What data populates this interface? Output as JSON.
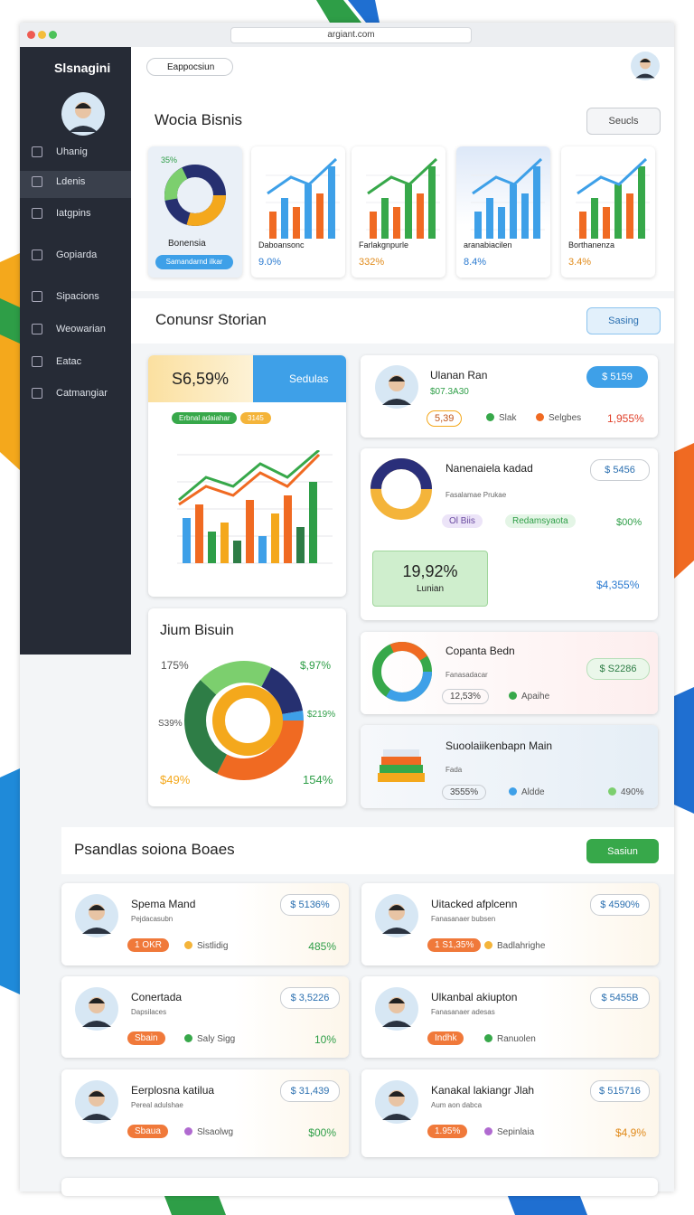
{
  "browser": {
    "url": "argiant.com"
  },
  "sidebar": {
    "brand": "Slsnagini",
    "items": [
      "Uhanig",
      "Ldenis",
      "Iatgpins",
      "Gopiarda",
      "Sipacions",
      "Weowarian",
      "Eatac",
      "Catmangiar"
    ]
  },
  "header": {
    "search": "Eappocsiun"
  },
  "overview": {
    "title": "Wocia Bisnis",
    "button": "Seucls",
    "cards": [
      {
        "badge": "35%",
        "label": "Bonensia",
        "tag": "Samandarnd ilkar"
      },
      {
        "label": "Daboansonc",
        "value": "9.0%"
      },
      {
        "label": "Farlakgnpurle",
        "value": "332%"
      },
      {
        "label": "aranabiacilen",
        "value": "8.4%"
      },
      {
        "label": "Borthanenza",
        "value": "3.4%"
      }
    ]
  },
  "stories": {
    "title": "Conunsr Storian",
    "button": "Sasing",
    "summary": {
      "value": "S6,59%",
      "button": "Sedulas",
      "tag": "Erbnal adaiahar",
      "badge": "3145"
    },
    "donut_card": {
      "title": "Jium Bisuin",
      "labels": [
        "175%",
        "$,97%",
        "S39%",
        "$219%",
        "$49%",
        "154%"
      ]
    },
    "items": [
      {
        "name": "Ulanan Ran",
        "sub": "$07.3A30",
        "button": "$ 5159",
        "pill": "5,39",
        "tag1": "Slak",
        "tag2": "Selgbes",
        "value": "1,955%"
      },
      {
        "name": "Nanenaiela kadad",
        "sub": "Fasalamae Prukae",
        "button": "$ 5456",
        "pill": "Ol Biis",
        "tag1": "Redamsyaota",
        "value": "$00%",
        "box_value": "19,92%",
        "box_label": "Lunian",
        "value2": "$4,355%"
      },
      {
        "name": "Copanta Bedn",
        "sub": "Fanasadacar",
        "button": "$ S2286",
        "pill": "12,53%",
        "tag1": "Apaihe"
      },
      {
        "name": "Suoolaiikenbapn Main",
        "sub": "Fada",
        "pill": "3555%",
        "tag1": "Aldde",
        "value": "490%"
      }
    ]
  },
  "boards": {
    "title": "Psandlas soiona Boaes",
    "button": "Sasiun",
    "cards": [
      {
        "name": "Spema Mand",
        "sub": "Pejdacasubn",
        "button": "$ 5136%",
        "pill": "1 OKR",
        "tag": "Sistlidig",
        "value": "485%"
      },
      {
        "name": "Uitacked afplcenn",
        "sub": "Fanasanaer bubsen",
        "button": "$ 4590%",
        "pill": "1 S1,35%",
        "tag": "Badlahrighe"
      },
      {
        "name": "Conertada",
        "sub": "Dapsilaces",
        "button": "$ 3,5226",
        "pill": "Sbain",
        "tag": "Saly Sigg",
        "value": "10%"
      },
      {
        "name": "Ulkanbal akiupton",
        "sub": "Fanasanaer adesas",
        "button": "$ 5455B",
        "pill": "Indhk",
        "tag": "Ranuolen"
      },
      {
        "name": "Eerplosna katilua",
        "sub": "Pereal adulshae",
        "button": "$ 31,439",
        "pill": "Sbaua",
        "tag": "Slsaolwg",
        "value": "$00%"
      },
      {
        "name": "Kanakal lakiangr Jlah",
        "sub": "Aum aon dabca",
        "button": "$ 515716",
        "pill": "1.95%",
        "tag": "Sepinlaia",
        "value": "$4,9%"
      }
    ]
  }
}
